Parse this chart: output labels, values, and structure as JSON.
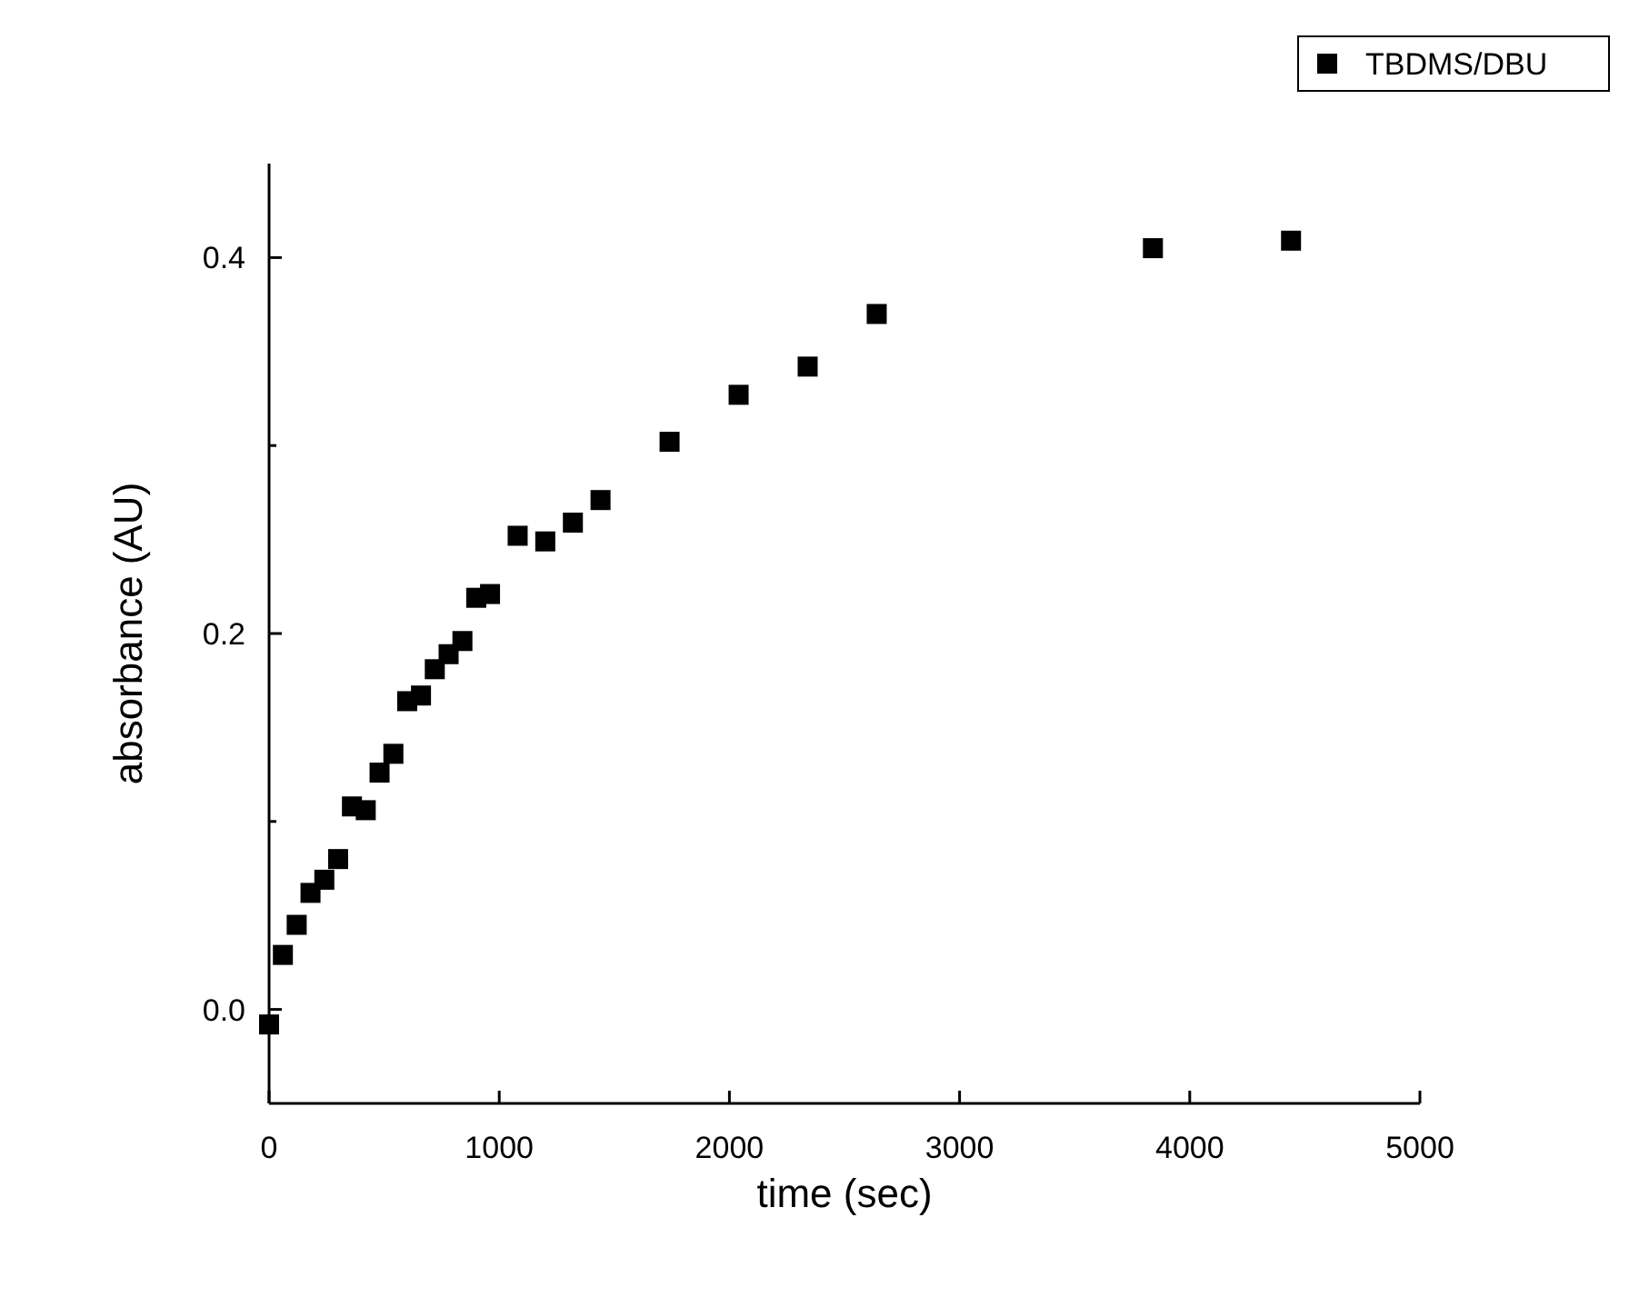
{
  "chart_data": {
    "type": "scatter",
    "xlabel": "time (sec)",
    "ylabel": "absorbance (AU)",
    "xlim": [
      0,
      5000
    ],
    "xticks": [
      0,
      1000,
      2000,
      3000,
      4000,
      5000
    ],
    "ylim": [
      -0.05,
      0.45
    ],
    "yticks": [
      {
        "value": 0,
        "label": "0.0"
      },
      {
        "value": 0.1,
        "label": null
      },
      {
        "value": 0.2,
        "label": "0.2"
      },
      {
        "value": 0.3,
        "label": null
      },
      {
        "value": 0.4,
        "label": "0.4"
      }
    ],
    "grid": false,
    "legend": "top right",
    "marker": "square",
    "series": [
      {
        "name": "TBDMS/DBU",
        "color": "#000000",
        "x": [
          0,
          60,
          120,
          180,
          240,
          300,
          360,
          420,
          480,
          540,
          600,
          660,
          720,
          780,
          840,
          900,
          960,
          1080,
          1200,
          1320,
          1440,
          1740,
          2040,
          2340,
          2640,
          3840,
          4440
        ],
        "values": [
          -0.008,
          0.029,
          0.045,
          0.062,
          0.069,
          0.08,
          0.108,
          0.106,
          0.126,
          0.136,
          0.164,
          0.167,
          0.181,
          0.189,
          0.196,
          0.219,
          0.221,
          0.252,
          0.249,
          0.259,
          0.271,
          0.302,
          0.327,
          0.342,
          0.37,
          0.405,
          0.409
        ]
      }
    ]
  }
}
